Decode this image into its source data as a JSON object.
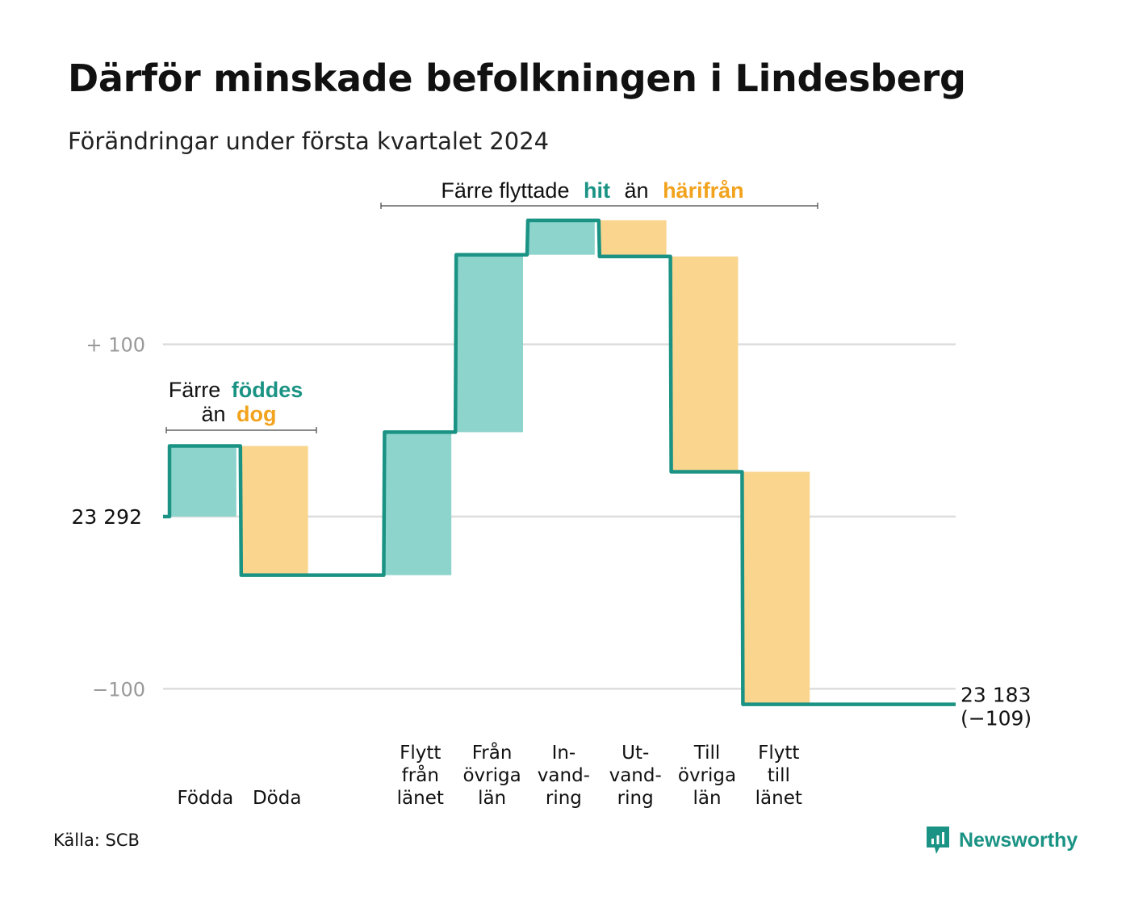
{
  "title": "Därför minskade befolkningen i Lindesberg",
  "subtitle": "Förändringar under första kvartalet 2024",
  "source": "Källa: SCB",
  "brand": "Newsworthy",
  "colors": {
    "line": "#1b9384",
    "increase": "#8dd4cc",
    "decrease": "#f9d58e",
    "accent_green": "#1b9384",
    "accent_orange": "#f2a31e",
    "grid": "#dddddd",
    "axis_text": "#999999"
  },
  "annotations": {
    "births": {
      "line1_prefix": "Färre",
      "line1_highlight": "föddes",
      "line2_prefix": "än",
      "line2_highlight": "dog"
    },
    "moves": {
      "prefix": "Färre flyttade",
      "highlight1": "hit",
      "middle": "än",
      "highlight2": "härifrån"
    }
  },
  "chart_data": {
    "type": "waterfall",
    "baseline": 23292,
    "baseline_label": "23 292",
    "y_axis_ticks": [
      {
        "value": 100,
        "label": "+ 100"
      },
      {
        "value": 0,
        "label": "23 292"
      },
      {
        "value": -100,
        "label": "−100"
      }
    ],
    "ylim": [
      -130,
      180
    ],
    "categories": [
      "Födda",
      "Döda",
      "",
      "Flytt från länet",
      "Från övriga län",
      "In- vand- ring",
      "Ut- vand- ring",
      "Till övriga län",
      "Flytt till länet",
      ""
    ],
    "category_labels": [
      [
        "Födda"
      ],
      [
        "Döda"
      ],
      [],
      [
        "Flytt",
        "från",
        "länet"
      ],
      [
        "Från",
        "övriga",
        "län"
      ],
      [
        "In-",
        "vand-",
        "ring"
      ],
      [
        "Ut-",
        "vand-",
        "ring"
      ],
      [
        "Till",
        "övriga",
        "län"
      ],
      [
        "Flytt",
        "till",
        "länet"
      ],
      []
    ],
    "values": [
      41,
      -75,
      0,
      83,
      103,
      20,
      -21,
      -125,
      -135,
      0
    ],
    "end_value_label": "23 183",
    "end_change_label": "(−109)",
    "grid": true
  }
}
